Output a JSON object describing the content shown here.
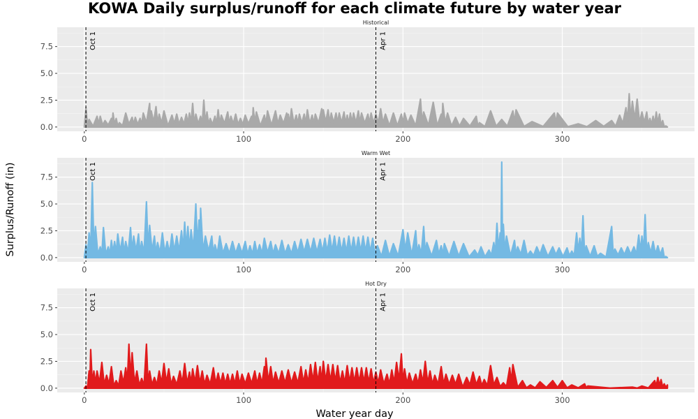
{
  "chart_data": {
    "type": "area",
    "title": "KOWA Daily surplus/runoff for each climate future by water year",
    "xlabel": "Water year day",
    "ylabel": "Surplus/Runoff (in)",
    "xlim": [
      -17,
      383
    ],
    "ylim": [
      -0.4,
      9.3
    ],
    "x_ticks": [
      0,
      100,
      200,
      300
    ],
    "y_ticks": [
      0.0,
      2.5,
      5.0,
      7.5
    ],
    "x_tick_labels": [
      "0",
      "100",
      "200",
      "300"
    ],
    "y_tick_labels": [
      "0.0",
      "2.5",
      "5.0",
      "7.5"
    ],
    "grid": true,
    "legend": "none",
    "vertical_markers": [
      {
        "x": 1,
        "label": "Oct 1"
      },
      {
        "x": 183,
        "label": "Apr 1"
      }
    ],
    "panels": [
      {
        "name": "Historical",
        "color": "#a9a9a9",
        "peaks": [
          [
            1,
            1.8
          ],
          [
            3,
            0.7
          ],
          [
            8,
            1.0
          ],
          [
            10,
            1.0
          ],
          [
            13,
            0.6
          ],
          [
            17,
            0.8
          ],
          [
            18,
            1.3
          ],
          [
            20,
            0.8
          ],
          [
            22,
            0.4
          ],
          [
            26,
            1.3
          ],
          [
            30,
            0.9
          ],
          [
            32,
            0.9
          ],
          [
            35,
            0.8
          ],
          [
            37,
            1.3
          ],
          [
            41,
            2.2
          ],
          [
            42,
            1.5
          ],
          [
            45,
            1.9
          ],
          [
            47,
            1.2
          ],
          [
            50,
            1.5
          ],
          [
            55,
            1.1
          ],
          [
            58,
            1.2
          ],
          [
            61,
            0.9
          ],
          [
            64,
            1.2
          ],
          [
            66,
            1.3
          ],
          [
            68,
            2.2
          ],
          [
            70,
            1.2
          ],
          [
            73,
            1.0
          ],
          [
            75,
            2.5
          ],
          [
            77,
            1.4
          ],
          [
            79,
            0.8
          ],
          [
            82,
            1.0
          ],
          [
            84,
            1.6
          ],
          [
            86,
            1.1
          ],
          [
            90,
            1.4
          ],
          [
            92,
            1.0
          ],
          [
            95,
            1.2
          ],
          [
            98,
            0.8
          ],
          [
            101,
            1.1
          ],
          [
            105,
            1.0
          ],
          [
            106,
            1.8
          ],
          [
            108,
            1.4
          ],
          [
            113,
            1.1
          ],
          [
            115,
            1.5
          ],
          [
            120,
            1.5
          ],
          [
            123,
            1.1
          ],
          [
            127,
            1.3
          ],
          [
            128,
            1.2
          ],
          [
            130,
            1.7
          ],
          [
            133,
            1.1
          ],
          [
            135,
            1.2
          ],
          [
            138,
            1.2
          ],
          [
            140,
            1.6
          ],
          [
            143,
            1.1
          ],
          [
            145,
            1.2
          ],
          [
            149,
            1.7
          ],
          [
            150,
            1.6
          ],
          [
            153,
            1.6
          ],
          [
            155,
            1.3
          ],
          [
            158,
            1.3
          ],
          [
            160,
            1.3
          ],
          [
            163,
            1.4
          ],
          [
            165,
            1.1
          ],
          [
            167,
            1.3
          ],
          [
            169,
            1.3
          ],
          [
            172,
            1.5
          ],
          [
            174,
            1.3
          ],
          [
            178,
            1.2
          ],
          [
            180,
            1.3
          ],
          [
            183,
            1.2
          ],
          [
            186,
            1.7
          ],
          [
            189,
            1.2
          ],
          [
            194,
            1.3
          ],
          [
            199,
            1.2
          ],
          [
            201,
            1.3
          ],
          [
            205,
            1.1
          ],
          [
            211,
            2.6
          ],
          [
            213,
            1.4
          ],
          [
            219,
            2.3
          ],
          [
            224,
            1.2
          ],
          [
            225,
            2.2
          ],
          [
            228,
            1.3
          ],
          [
            233,
            0.9
          ],
          [
            238,
            0.8
          ],
          [
            246,
            1.0
          ],
          [
            248,
            0.4
          ],
          [
            255,
            1.5
          ],
          [
            262,
            0.7
          ],
          [
            269,
            1.5
          ],
          [
            271,
            1.6
          ],
          [
            281,
            0.5
          ],
          [
            295,
            1.3
          ],
          [
            297,
            1.3
          ],
          [
            310,
            0.3
          ],
          [
            321,
            0.6
          ],
          [
            331,
            0.6
          ],
          [
            336,
            1.1
          ],
          [
            340,
            1.8
          ],
          [
            342,
            3.1
          ],
          [
            344,
            2.4
          ],
          [
            347,
            2.6
          ],
          [
            350,
            1.4
          ],
          [
            353,
            1.4
          ],
          [
            355,
            0.8
          ],
          [
            357,
            1.0
          ],
          [
            359,
            1.4
          ],
          [
            361,
            1.2
          ],
          [
            363,
            0.6
          ],
          [
            365,
            0.1
          ]
        ]
      },
      {
        "name": "Warm Wet",
        "color": "#74b9e3",
        "peaks": [
          [
            1,
            1.2
          ],
          [
            3,
            2.3
          ],
          [
            5,
            7.0
          ],
          [
            7,
            2.9
          ],
          [
            10,
            1.0
          ],
          [
            12,
            2.8
          ],
          [
            15,
            1.0
          ],
          [
            17,
            1.6
          ],
          [
            19,
            1.5
          ],
          [
            21,
            2.2
          ],
          [
            24,
            1.9
          ],
          [
            26,
            1.5
          ],
          [
            29,
            2.8
          ],
          [
            31,
            2.0
          ],
          [
            34,
            2.2
          ],
          [
            36,
            1.5
          ],
          [
            39,
            5.2
          ],
          [
            41,
            3.0
          ],
          [
            44,
            2.0
          ],
          [
            46,
            1.4
          ],
          [
            49,
            2.3
          ],
          [
            52,
            1.5
          ],
          [
            55,
            2.2
          ],
          [
            58,
            2.0
          ],
          [
            61,
            2.5
          ],
          [
            63,
            3.3
          ],
          [
            65,
            2.9
          ],
          [
            67,
            2.6
          ],
          [
            70,
            5.0
          ],
          [
            72,
            3.5
          ],
          [
            73,
            4.6
          ],
          [
            76,
            2.0
          ],
          [
            80,
            2.0
          ],
          [
            82,
            1.2
          ],
          [
            85,
            2.0
          ],
          [
            89,
            1.3
          ],
          [
            93,
            1.5
          ],
          [
            97,
            1.3
          ],
          [
            101,
            1.5
          ],
          [
            104,
            1.1
          ],
          [
            107,
            1.5
          ],
          [
            110,
            1.2
          ],
          [
            113,
            1.8
          ],
          [
            117,
            1.5
          ],
          [
            120,
            1.2
          ],
          [
            124,
            1.6
          ],
          [
            128,
            1.2
          ],
          [
            132,
            1.5
          ],
          [
            136,
            1.7
          ],
          [
            140,
            1.7
          ],
          [
            144,
            1.8
          ],
          [
            148,
            1.7
          ],
          [
            151,
            1.8
          ],
          [
            154,
            2.1
          ],
          [
            157,
            2.0
          ],
          [
            160,
            1.9
          ],
          [
            163,
            1.8
          ],
          [
            166,
            2.0
          ],
          [
            169,
            1.9
          ],
          [
            172,
            1.9
          ],
          [
            175,
            2.0
          ],
          [
            178,
            1.9
          ],
          [
            181,
            1.8
          ],
          [
            184,
            1.1
          ],
          [
            189,
            1.6
          ],
          [
            194,
            1.3
          ],
          [
            200,
            2.6
          ],
          [
            203,
            2.3
          ],
          [
            208,
            2.5
          ],
          [
            210,
            1.2
          ],
          [
            213,
            2.9
          ],
          [
            215,
            1.4
          ],
          [
            221,
            1.6
          ],
          [
            224,
            1.1
          ],
          [
            226,
            1.3
          ],
          [
            232,
            1.5
          ],
          [
            238,
            1.3
          ],
          [
            245,
            0.7
          ],
          [
            249,
            1.0
          ],
          [
            254,
            0.7
          ],
          [
            257,
            1.4
          ],
          [
            259,
            3.2
          ],
          [
            261,
            2.3
          ],
          [
            262,
            8.9
          ],
          [
            263,
            3.1
          ],
          [
            265,
            2.0
          ],
          [
            270,
            1.6
          ],
          [
            272,
            1.0
          ],
          [
            276,
            1.6
          ],
          [
            280,
            0.6
          ],
          [
            284,
            1.0
          ],
          [
            288,
            1.2
          ],
          [
            294,
            1.0
          ],
          [
            298,
            0.9
          ],
          [
            303,
            0.9
          ],
          [
            306,
            0.6
          ],
          [
            309,
            2.3
          ],
          [
            311,
            1.8
          ],
          [
            313,
            3.9
          ],
          [
            315,
            1.1
          ],
          [
            320,
            1.1
          ],
          [
            324,
            0.4
          ],
          [
            331,
            2.9
          ],
          [
            333,
            0.8
          ],
          [
            337,
            0.9
          ],
          [
            341,
            1.0
          ],
          [
            345,
            1.0
          ],
          [
            348,
            2.1
          ],
          [
            350,
            2.0
          ],
          [
            352,
            4.0
          ],
          [
            354,
            1.4
          ],
          [
            357,
            1.5
          ],
          [
            360,
            1.1
          ],
          [
            363,
            0.9
          ],
          [
            365,
            0.1
          ]
        ]
      },
      {
        "name": "Hot Dry",
        "color": "#e11a1c",
        "peaks": [
          [
            1,
            0.2
          ],
          [
            3,
            1.6
          ],
          [
            4,
            3.6
          ],
          [
            6,
            1.6
          ],
          [
            8,
            1.6
          ],
          [
            11,
            2.4
          ],
          [
            14,
            1.2
          ],
          [
            17,
            2.0
          ],
          [
            20,
            0.7
          ],
          [
            23,
            1.6
          ],
          [
            26,
            1.9
          ],
          [
            28,
            4.1
          ],
          [
            30,
            3.3
          ],
          [
            33,
            1.6
          ],
          [
            36,
            0.9
          ],
          [
            39,
            4.1
          ],
          [
            41,
            1.6
          ],
          [
            44,
            1.0
          ],
          [
            47,
            1.6
          ],
          [
            50,
            2.3
          ],
          [
            53,
            1.8
          ],
          [
            56,
            1.1
          ],
          [
            60,
            1.6
          ],
          [
            63,
            2.3
          ],
          [
            66,
            1.5
          ],
          [
            68,
            1.8
          ],
          [
            71,
            2.1
          ],
          [
            74,
            1.6
          ],
          [
            77,
            1.2
          ],
          [
            81,
            1.9
          ],
          [
            84,
            1.4
          ],
          [
            87,
            1.4
          ],
          [
            90,
            1.3
          ],
          [
            93,
            1.3
          ],
          [
            96,
            1.6
          ],
          [
            99,
            1.3
          ],
          [
            103,
            1.4
          ],
          [
            107,
            1.6
          ],
          [
            110,
            1.4
          ],
          [
            113,
            2.0
          ],
          [
            114,
            2.8
          ],
          [
            117,
            2.0
          ],
          [
            120,
            1.5
          ],
          [
            124,
            1.6
          ],
          [
            128,
            1.7
          ],
          [
            132,
            1.5
          ],
          [
            136,
            2.0
          ],
          [
            139,
            1.7
          ],
          [
            142,
            2.2
          ],
          [
            145,
            2.4
          ],
          [
            148,
            2.0
          ],
          [
            150,
            2.5
          ],
          [
            153,
            2.2
          ],
          [
            156,
            2.2
          ],
          [
            159,
            2.1
          ],
          [
            162,
            1.6
          ],
          [
            165,
            2.1
          ],
          [
            168,
            1.9
          ],
          [
            171,
            1.9
          ],
          [
            174,
            1.9
          ],
          [
            177,
            1.9
          ],
          [
            180,
            1.8
          ],
          [
            183,
            1.5
          ],
          [
            186,
            1.7
          ],
          [
            190,
            1.3
          ],
          [
            193,
            1.7
          ],
          [
            196,
            2.4
          ],
          [
            199,
            3.2
          ],
          [
            201,
            1.8
          ],
          [
            204,
            1.4
          ],
          [
            208,
            1.3
          ],
          [
            211,
            1.7
          ],
          [
            214,
            2.5
          ],
          [
            217,
            1.6
          ],
          [
            220,
            1.2
          ],
          [
            224,
            2.0
          ],
          [
            227,
            1.3
          ],
          [
            231,
            1.2
          ],
          [
            235,
            1.3
          ],
          [
            240,
            1.0
          ],
          [
            244,
            1.5
          ],
          [
            248,
            1.1
          ],
          [
            251,
            0.8
          ],
          [
            255,
            2.1
          ],
          [
            259,
            1.0
          ],
          [
            263,
            0.5
          ],
          [
            267,
            1.9
          ],
          [
            269,
            2.2
          ],
          [
            275,
            0.7
          ],
          [
            280,
            0.3
          ],
          [
            286,
            0.6
          ],
          [
            294,
            0.7
          ],
          [
            300,
            0.7
          ],
          [
            306,
            0.3
          ],
          [
            314,
            0.4
          ],
          [
            316,
            0.2
          ],
          [
            344,
            0.1
          ],
          [
            350,
            0.2
          ],
          [
            358,
            0.7
          ],
          [
            360,
            1.0
          ],
          [
            362,
            0.8
          ],
          [
            364,
            0.4
          ],
          [
            366,
            0.3
          ]
        ]
      }
    ]
  }
}
